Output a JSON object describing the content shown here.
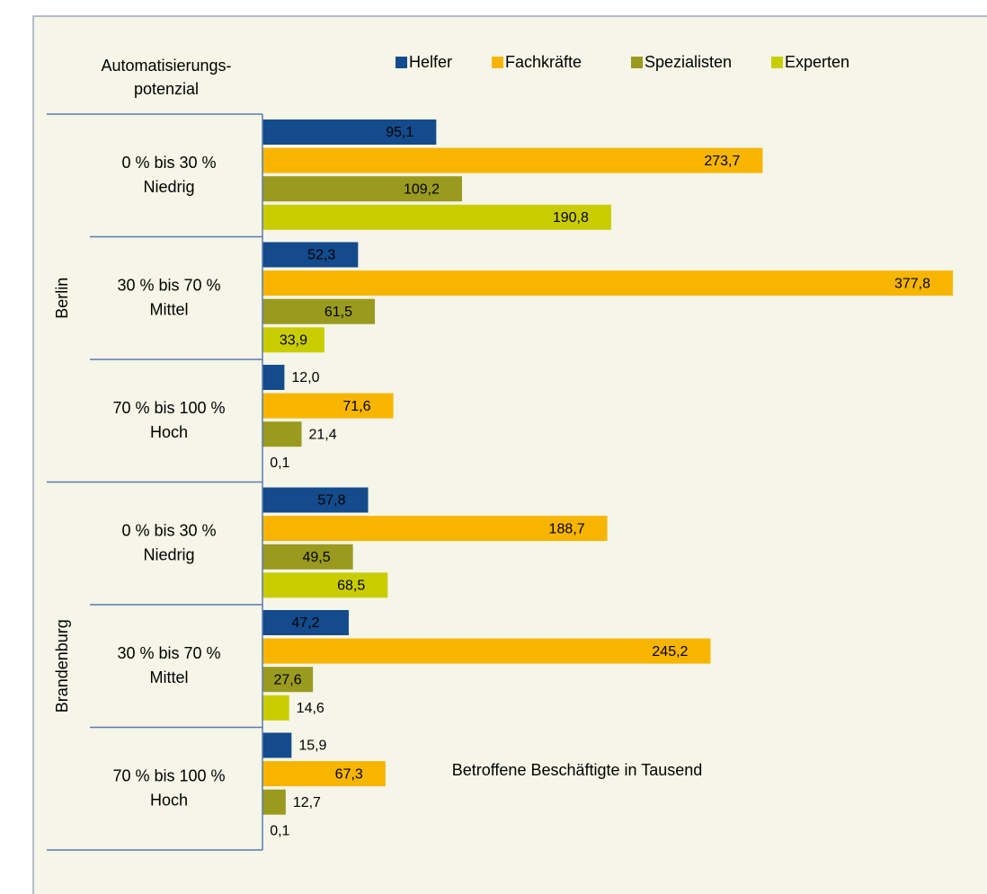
{
  "chart_data": {
    "type": "bar",
    "orientation": "horizontal",
    "header": [
      "Automatisierungs-",
      "potenzial"
    ],
    "xlabel": "Betroffene Beschäftigte in Tausend",
    "groups": [
      {
        "label": "Berlin",
        "categories": [
          [
            "0 % bis 30 %",
            "Niedrig"
          ],
          [
            "30 % bis 70 %",
            "Mittel"
          ],
          [
            "70 % bis 100 %",
            "Hoch"
          ]
        ]
      },
      {
        "label": "Brandenburg",
        "categories": [
          [
            "0 % bis 30 %",
            "Niedrig"
          ],
          [
            "30 % bis 70 %",
            "Mittel"
          ],
          [
            "70 % bis 100 %",
            "Hoch"
          ]
        ]
      }
    ],
    "series": [
      {
        "name": "Helfer",
        "color": "#134b8c",
        "values": [
          95.1,
          52.3,
          12.0,
          57.8,
          47.2,
          15.9
        ],
        "value_labels": [
          "95,1",
          "52,3",
          "12,0",
          "57,8",
          "47,2",
          "15,9"
        ]
      },
      {
        "name": "Fachkräfte",
        "color": "#f7b500",
        "values": [
          273.7,
          377.8,
          71.6,
          188.7,
          245.2,
          67.3
        ],
        "value_labels": [
          "273,7",
          "377,8",
          "71,6",
          "188,7",
          "245,2",
          "67,3"
        ]
      },
      {
        "name": "Spezialisten",
        "color": "#9a9a1e",
        "values": [
          109.2,
          61.5,
          21.4,
          49.5,
          27.6,
          12.7
        ],
        "value_labels": [
          "109,2",
          "61,5",
          "21,4",
          "49,5",
          "27,6",
          "12,7"
        ]
      },
      {
        "name": "Experten",
        "color": "#c9cd00",
        "values": [
          190.8,
          33.9,
          0.1,
          68.5,
          14.6,
          0.1
        ],
        "value_labels": [
          "190,8",
          "33,9",
          "0,1",
          "68,5",
          "14,6",
          "0,1"
        ]
      }
    ],
    "xlim": [
      0,
      380
    ]
  }
}
